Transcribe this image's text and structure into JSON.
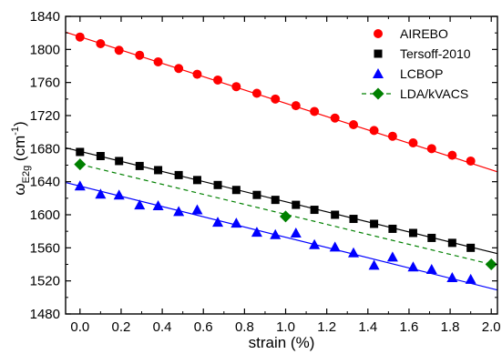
{
  "chart_data": {
    "type": "scatter",
    "xlabel": "strain (%)",
    "ylabel": {
      "main": "ω",
      "sub": "E2g",
      "unit_pre": " (cm",
      "unit_sup": "-1",
      "unit_post": ")"
    },
    "xlim": [
      -0.07,
      2.03
    ],
    "ylim": [
      1480,
      1840
    ],
    "xticks": [
      0.0,
      0.2,
      0.4,
      0.6,
      0.8,
      1.0,
      1.2,
      1.4,
      1.6,
      1.8,
      2.0
    ],
    "xtick_labels": [
      "0.0",
      "0.2",
      "0.4",
      "0.6",
      "0.8",
      "1.0",
      "1.2",
      "1.4",
      "1.6",
      "1.8",
      "2.0"
    ],
    "yticks": [
      1480,
      1520,
      1560,
      1600,
      1640,
      1680,
      1720,
      1760,
      1800,
      1840
    ],
    "ytick_labels": [
      "1480",
      "1520",
      "1560",
      "1600",
      "1640",
      "1680",
      "1720",
      "1760",
      "1800",
      "1840"
    ],
    "legend_position": "top-right",
    "series": [
      {
        "name": "AIREBO",
        "marker": "circle",
        "color": "#ff0000",
        "x": [
          0.0,
          0.1,
          0.19,
          0.29,
          0.38,
          0.48,
          0.57,
          0.67,
          0.76,
          0.86,
          0.95,
          1.05,
          1.14,
          1.24,
          1.33,
          1.43,
          1.52,
          1.62,
          1.71,
          1.81,
          1.9
        ],
        "y": [
          1815,
          1807,
          1799,
          1793,
          1785,
          1777,
          1770,
          1763,
          1755,
          1747,
          1740,
          1732,
          1725,
          1717,
          1709,
          1702,
          1695,
          1687,
          1680,
          1672,
          1665
        ],
        "fit": {
          "type": "solid",
          "x": [
            -0.07,
            2.03
          ],
          "y": [
            1821,
            1652
          ]
        }
      },
      {
        "name": "Tersoff-2010",
        "marker": "square",
        "color": "#000000",
        "x": [
          0.0,
          0.1,
          0.19,
          0.29,
          0.38,
          0.48,
          0.57,
          0.67,
          0.76,
          0.86,
          0.95,
          1.05,
          1.14,
          1.24,
          1.33,
          1.43,
          1.52,
          1.62,
          1.71,
          1.81,
          1.9
        ],
        "y": [
          1676,
          1671,
          1665,
          1659,
          1654,
          1648,
          1642,
          1636,
          1630,
          1624,
          1618,
          1612,
          1606,
          1600,
          1595,
          1589,
          1583,
          1578,
          1572,
          1566,
          1560
        ],
        "fit": {
          "type": "solid",
          "x": [
            -0.07,
            2.03
          ],
          "y": [
            1681,
            1553
          ]
        }
      },
      {
        "name": "LCBOP",
        "marker": "triangle",
        "color": "#0000ff",
        "x": [
          0.0,
          0.1,
          0.19,
          0.29,
          0.38,
          0.48,
          0.57,
          0.67,
          0.76,
          0.86,
          0.95,
          1.05,
          1.14,
          1.24,
          1.33,
          1.43,
          1.52,
          1.62,
          1.71,
          1.81,
          1.9
        ],
        "y": [
          1635,
          1625,
          1624,
          1612,
          1611,
          1604,
          1606,
          1591,
          1590,
          1579,
          1576,
          1578,
          1564,
          1561,
          1554,
          1539,
          1549,
          1537,
          1534,
          1524,
          1522
        ],
        "fit": {
          "type": "solid",
          "x": [
            -0.07,
            2.03
          ],
          "y": [
            1639,
            1509
          ]
        }
      },
      {
        "name": "LDA/kVACS",
        "marker": "diamond",
        "color": "#008000",
        "x": [
          0.0,
          1.0,
          2.0
        ],
        "y": [
          1661,
          1598,
          1540
        ],
        "fit": {
          "type": "dashed",
          "x": [
            0.0,
            2.0
          ],
          "y": [
            1661,
            1540
          ]
        }
      }
    ]
  }
}
